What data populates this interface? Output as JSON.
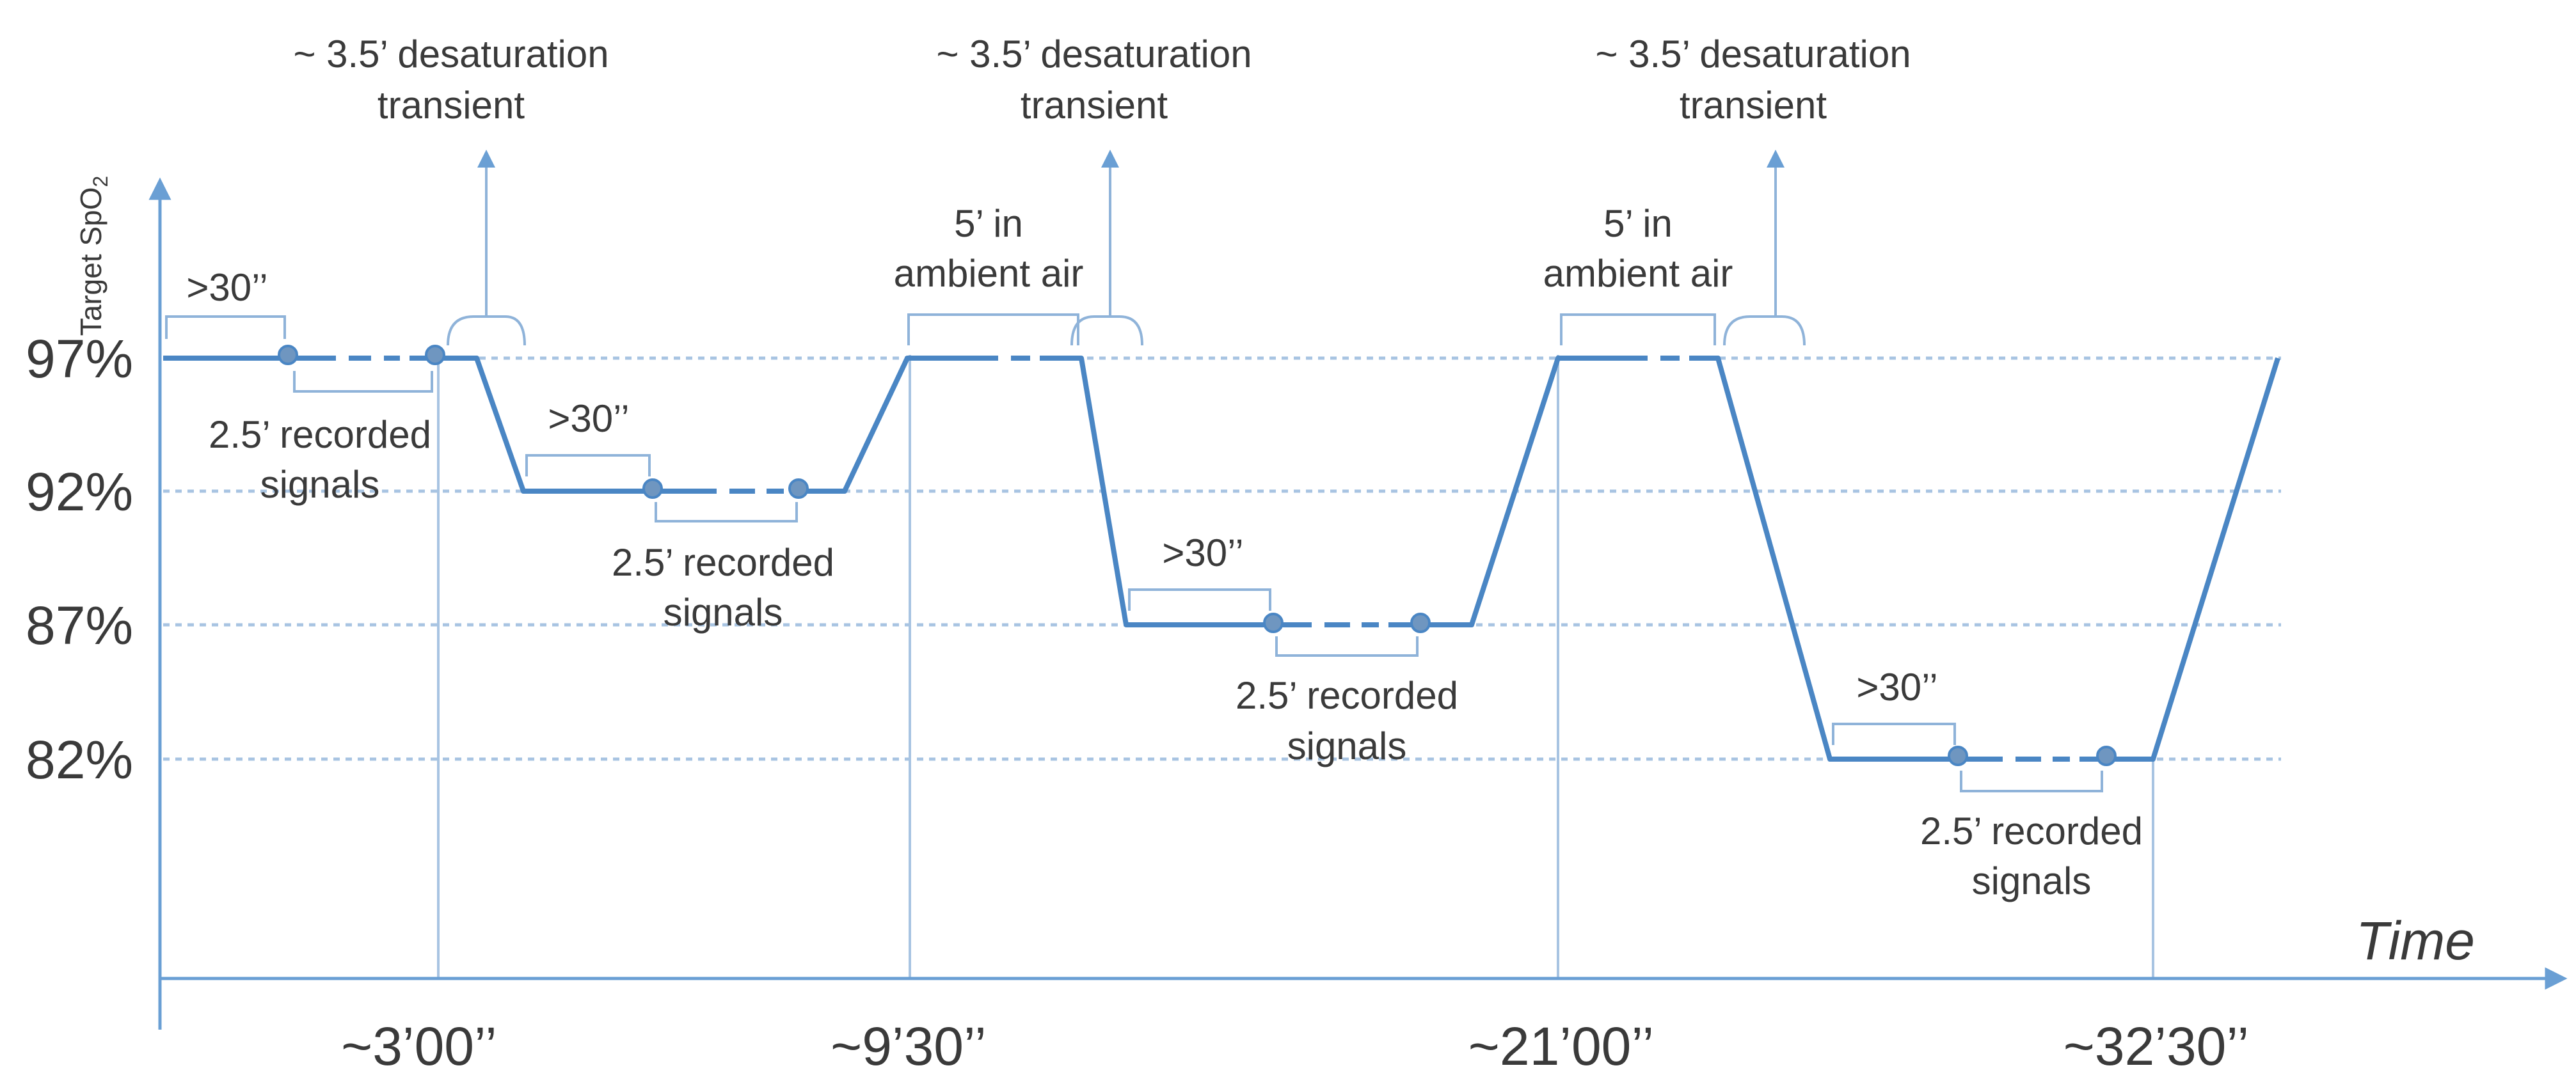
{
  "colors": {
    "line": "#4a86c4",
    "annotation": "#8fb3d9",
    "axis": "#6a9fd4",
    "guide": "#a8c4e2",
    "text": "#3a3a3a"
  },
  "y_axis": {
    "label": "Target SpO",
    "label_sub": "2",
    "levels": [
      {
        "label": "97%",
        "value": 97
      },
      {
        "label": "92%",
        "value": 92
      },
      {
        "label": "87%",
        "value": 87
      },
      {
        "label": "82%",
        "value": 82
      }
    ]
  },
  "x_axis": {
    "label": "Time",
    "ticks": [
      "~3’00’’",
      "~9’30’’",
      "~21’00’’",
      "~32’30’’"
    ]
  },
  "annotations": {
    "desaturation": "~ 3.5’ desaturation",
    "desaturation_line2": "transient",
    "ambient": "5’ in",
    "ambient_line2": "ambient air",
    "hold": ">30’’",
    "recorded": "2.5’ recorded",
    "recorded_line2": "signals"
  }
}
